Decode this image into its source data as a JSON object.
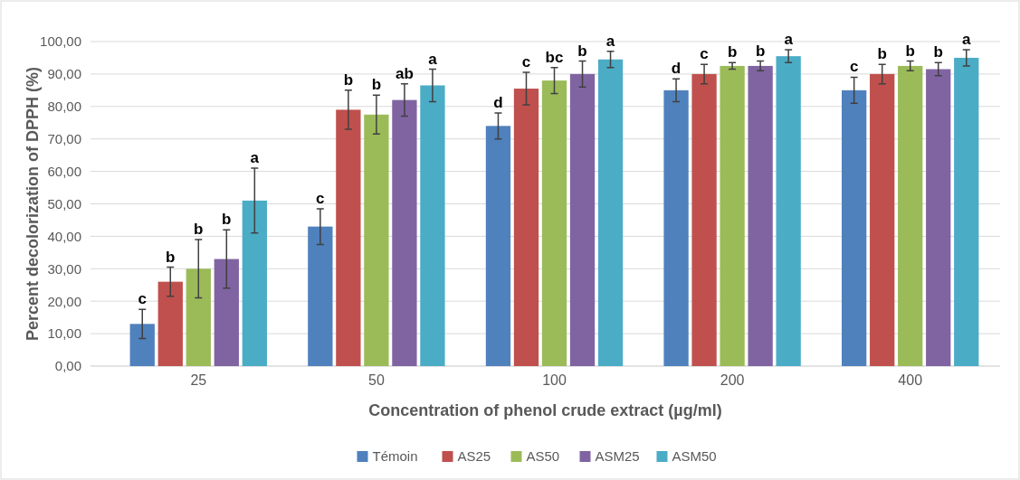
{
  "chart_data": {
    "type": "bar",
    "xlabel": "Concentration of phenol crude extract (µg/ml)",
    "ylabel": "Percent decolorization of DPPH (%)",
    "categories": [
      "25",
      "50",
      "100",
      "200",
      "400"
    ],
    "series": [
      {
        "name": "Témoin",
        "color": "#4f81bd",
        "values": [
          13,
          43,
          74,
          85,
          85
        ],
        "errors": [
          4.5,
          5.5,
          4,
          3.5,
          4
        ]
      },
      {
        "name": "AS25",
        "color": "#c0504d",
        "values": [
          26,
          79,
          85.5,
          90,
          90
        ],
        "errors": [
          4.5,
          6,
          5,
          3,
          3
        ]
      },
      {
        "name": "AS50",
        "color": "#9bbb59",
        "values": [
          30,
          77.5,
          88,
          92.5,
          92.5
        ],
        "errors": [
          9,
          6,
          4,
          1,
          1.5
        ]
      },
      {
        "name": "ASM25",
        "color": "#8064a2",
        "values": [
          33,
          82,
          90,
          92.5,
          91.5
        ],
        "errors": [
          9,
          5,
          4,
          1.5,
          2
        ]
      },
      {
        "name": "ASM50",
        "color": "#4bacc6",
        "values": [
          51,
          86.5,
          94.5,
          95.5,
          95
        ],
        "errors": [
          10,
          5,
          2.5,
          2,
          2.5
        ]
      }
    ],
    "ylim": [
      0,
      100
    ],
    "yticks": [
      {
        "value": 0,
        "label": "0,00"
      },
      {
        "value": 10,
        "label": "10,00"
      },
      {
        "value": 20,
        "label": "20,00"
      },
      {
        "value": 30,
        "label": "30,00"
      },
      {
        "value": 40,
        "label": "40,00"
      },
      {
        "value": 50,
        "label": "50,00"
      },
      {
        "value": 60,
        "label": "60,00"
      },
      {
        "value": 70,
        "label": "70,00"
      },
      {
        "value": 80,
        "label": "80,00"
      },
      {
        "value": 90,
        "label": "90,00"
      },
      {
        "value": 100,
        "label": "100,00"
      }
    ],
    "grid": "y",
    "legend": "bottom",
    "annotations": [
      "c",
      "b",
      "b",
      "b",
      "a",
      "c",
      "b",
      "b",
      "ab",
      "a",
      "d",
      "c",
      "bc",
      "b",
      "a",
      "d",
      "c",
      "b",
      "b",
      "a",
      "c",
      "b",
      "b",
      "b",
      "a"
    ]
  }
}
